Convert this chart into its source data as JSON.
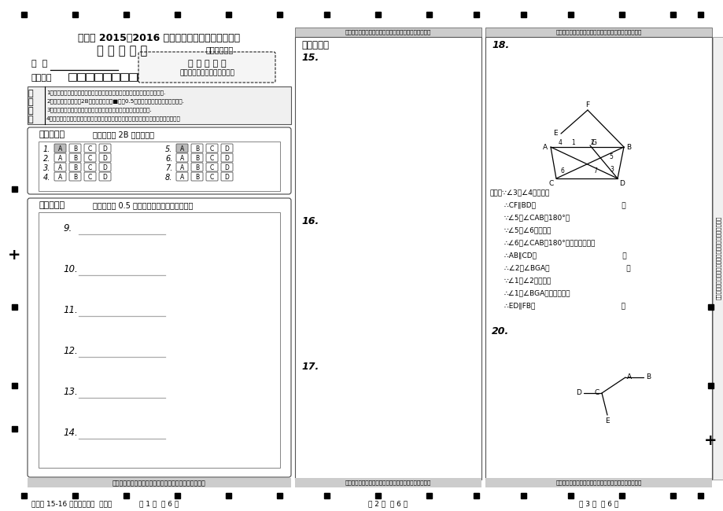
{
  "title_main": "自贡市 2015～2016 学年七年级下学期期末统一考",
  "title_sub": "数 学 答 题 卡",
  "designer": "设计：郑宗平",
  "name_label": "姓  名",
  "id_label": "准考证号",
  "barcode_title": "贴 条 形 码 区",
  "barcode_sub": "（正面向上切勿贴出虚线外）",
  "notes": [
    "1．答题前，考生务必认清条形码上的姓名、考生号、科目、考场号和座位号.",
    "2．答题时，必须使用2B铅笔填涂选择题■；用0.5毫米黑色墨水签字笔书写和作图.",
    "3．严格按题号所标示的区域内作答，超出答题区域书写的答案无效.",
    "4．保持答卷清洁、完整，严禁折叠，严禁在答题卡作任何标记，不使用涂改液和修正带"
  ],
  "section1_title": "一、选择题",
  "section1_note": "（考生须用 2B 铅笔填涂）",
  "section2_title": "二、填空题",
  "section2_note": "（考生须用 0.5 毫米的黑色墨水签字笔书写）",
  "section3_title": "三、解答题",
  "fill_items": [
    "9.",
    "10.",
    "11.",
    "12.",
    "13.",
    "14."
  ],
  "proof_text": [
    "证明：∵∠3＝∠4（已知）",
    "∴CF∥BD（                                      ）",
    "∵∠5＋∠CAB＝180°（",
    "∵∠5＝∠6（已知）",
    "∴∠6＋∠CAB＝180°（等式的性质）",
    "∴AB∥CD（                                      ）",
    "∴∠2＝∠BGA（                                  ）",
    "∵∠1＝∠2（已知）",
    "∴∠1＝∠BGA（等量代换）",
    "∴ED∥FB（                                      ）"
  ],
  "footer_left": "自贡市 15-16 下期七数统考  答题卡",
  "footer_p1": "第 1 页  共 6 页",
  "footer_p2": "第 2 页  共 6 页",
  "footer_p3": "第 3 页  共 6 页",
  "warning_text": "请在各题目的答题区域内作答，超出答题区域的答案无效",
  "warning_text2": "请在各题目的答题区域内作答，超出答题区域的答案无效"
}
